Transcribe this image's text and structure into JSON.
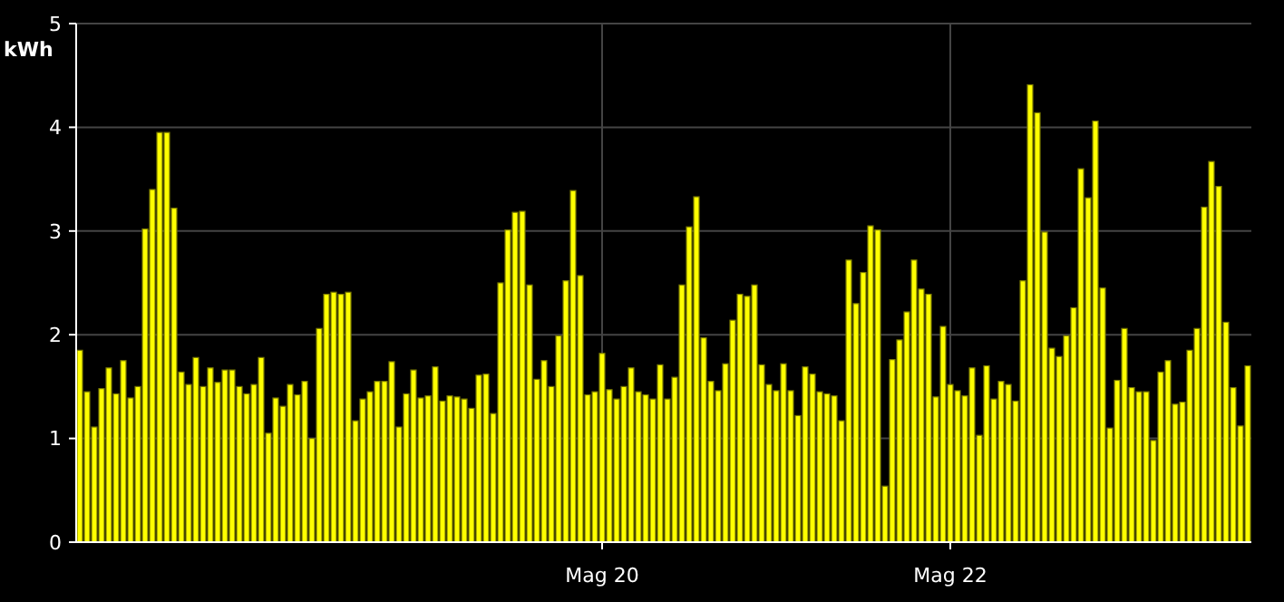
{
  "chart_data": {
    "type": "bar",
    "ylabel": "kWh",
    "categories": [
      null,
      null,
      null,
      null,
      null,
      null,
      null,
      null,
      null,
      null,
      null,
      null,
      null,
      null,
      null,
      null,
      null,
      null,
      null,
      null,
      null,
      null,
      null,
      null,
      null,
      null,
      null,
      null,
      null,
      null,
      null,
      null,
      null,
      null,
      null,
      null,
      null,
      null,
      null,
      null,
      null,
      null,
      null,
      null,
      null,
      null,
      null,
      null,
      null,
      null,
      null,
      null,
      null,
      null,
      null,
      null,
      null,
      null,
      null,
      null,
      null,
      null,
      null,
      null,
      null,
      null,
      null,
      null,
      null,
      null,
      null,
      null,
      "Mag 20",
      null,
      null,
      null,
      null,
      null,
      null,
      null,
      null,
      null,
      null,
      null,
      null,
      null,
      null,
      null,
      null,
      null,
      null,
      null,
      null,
      null,
      null,
      null,
      null,
      null,
      null,
      null,
      null,
      null,
      null,
      null,
      null,
      null,
      null,
      null,
      null,
      null,
      null,
      null,
      null,
      null,
      null,
      null,
      null,
      null,
      null,
      null,
      "Mag 22",
      null,
      null,
      null,
      null,
      null,
      null,
      null,
      null,
      null,
      null,
      null,
      null,
      null,
      null,
      null,
      null,
      null,
      null,
      null,
      null,
      null,
      null,
      null,
      null,
      null,
      null,
      null,
      null,
      null,
      null,
      null,
      null,
      null,
      null,
      null,
      null,
      null,
      null,
      null,
      null,
      null
    ],
    "series": [
      {
        "color": "#ffff00",
        "values": [
          1.85,
          1.45,
          1.11,
          1.48,
          1.68,
          1.43,
          1.75,
          1.39,
          1.5,
          3.02,
          3.4,
          3.95,
          3.95,
          3.22,
          1.64,
          1.52,
          1.78,
          1.5,
          1.68,
          1.54,
          1.66,
          1.66,
          1.5,
          1.43,
          1.52,
          1.78,
          1.05,
          1.39,
          1.31,
          1.52,
          1.42,
          1.55,
          1.0,
          2.06,
          2.39,
          2.41,
          2.39,
          2.41,
          1.17,
          1.38,
          1.45,
          1.55,
          1.55,
          1.74,
          1.11,
          1.43,
          1.66,
          1.39,
          1.41,
          1.69,
          1.36,
          1.41,
          1.4,
          1.38,
          1.29,
          1.61,
          1.62,
          1.24,
          2.5,
          3.01,
          3.18,
          3.19,
          2.48,
          1.57,
          1.75,
          1.5,
          1.99,
          2.52,
          3.39,
          2.57,
          1.42,
          1.45,
          1.82,
          1.47,
          1.38,
          1.5,
          1.68,
          1.45,
          1.42,
          1.38,
          1.71,
          1.38,
          1.59,
          2.48,
          3.04,
          3.33,
          1.97,
          1.55,
          1.46,
          1.72,
          2.14,
          2.39,
          2.37,
          2.48,
          1.71,
          1.52,
          1.46,
          1.72,
          1.46,
          1.22,
          1.69,
          1.62,
          1.45,
          1.43,
          1.41,
          1.17,
          2.72,
          2.3,
          2.6,
          3.05,
          3.01,
          0.54,
          1.76,
          1.95,
          2.22,
          2.72,
          2.44,
          2.39,
          1.4,
          2.08,
          1.52,
          1.46,
          1.41,
          1.68,
          1.03,
          1.7,
          1.38,
          1.55,
          1.52,
          1.36,
          2.52,
          4.41,
          4.14,
          2.99,
          1.87,
          1.79,
          1.99,
          2.26,
          3.6,
          3.32,
          4.06,
          2.45,
          1.1,
          1.56,
          2.06,
          1.49,
          1.45,
          1.45,
          0.98,
          1.64,
          1.75,
          1.33,
          1.35,
          1.85,
          2.06,
          3.23,
          3.67,
          3.43,
          2.12,
          1.49,
          1.12,
          1.7
        ]
      }
    ],
    "ylim": [
      0,
      5
    ],
    "yticks": [
      0,
      1,
      2,
      3,
      4,
      5
    ],
    "grid": true
  }
}
